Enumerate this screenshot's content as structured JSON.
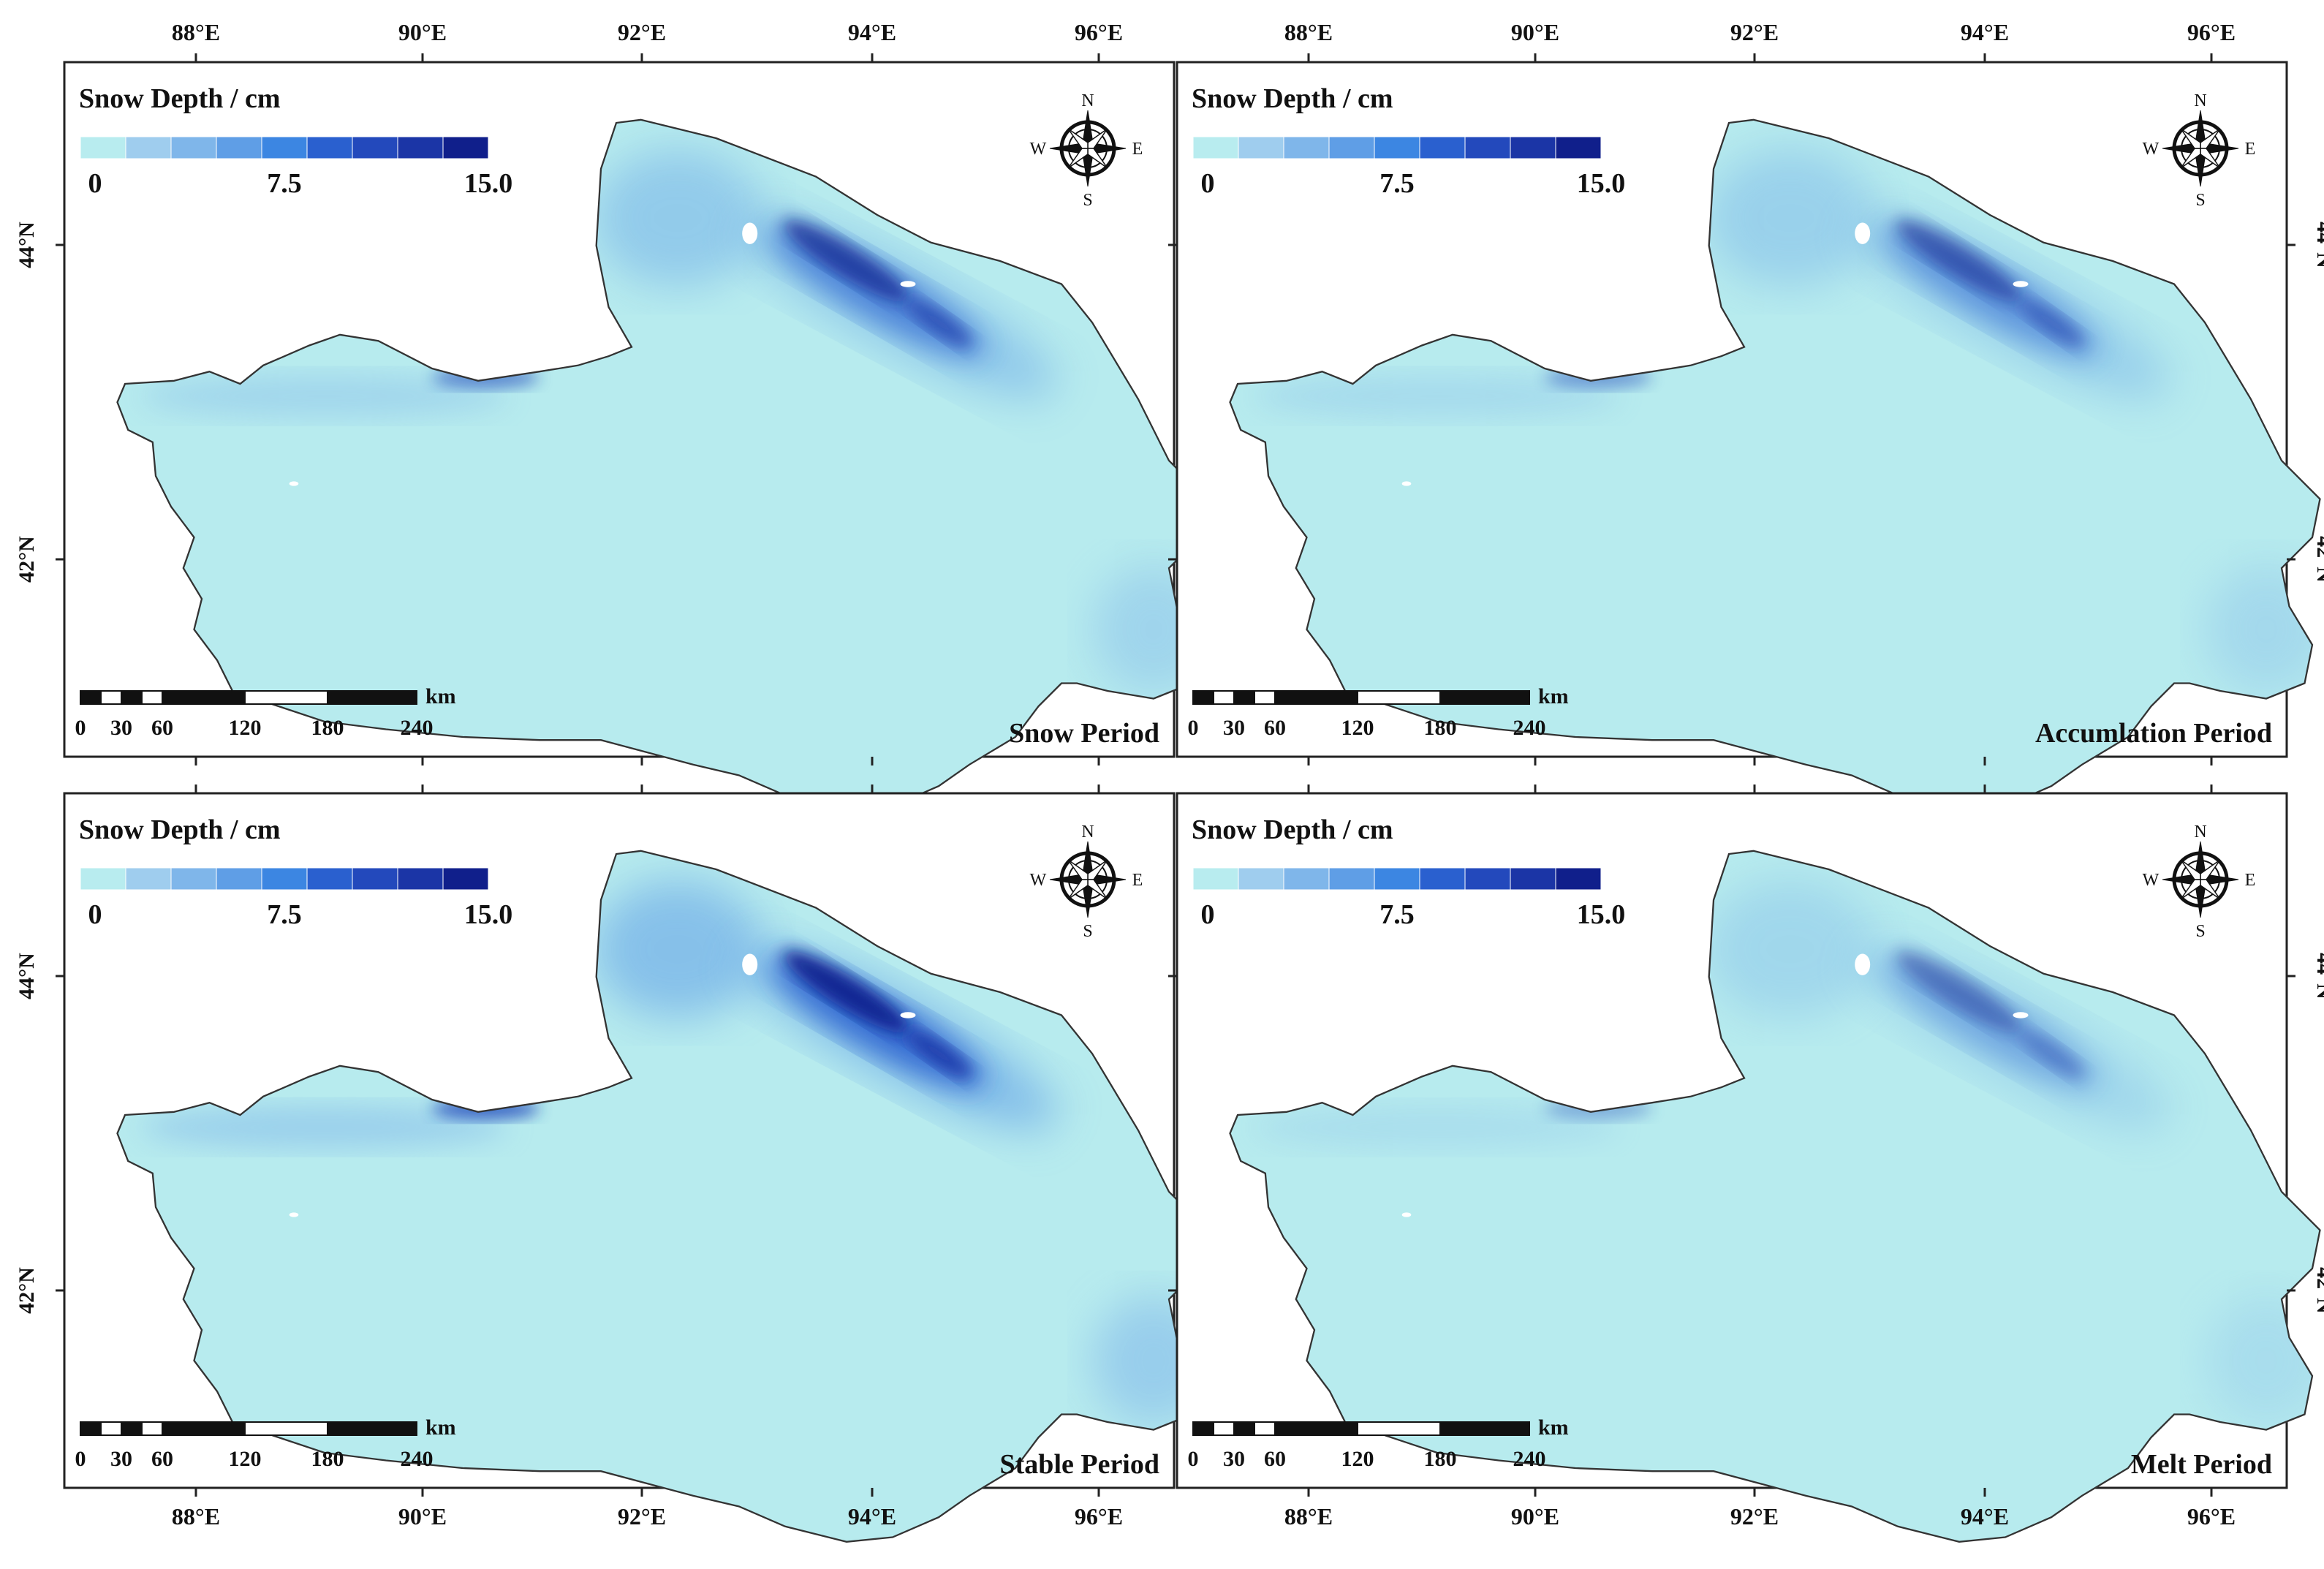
{
  "figure": {
    "legend_title": "Snow Depth / cm",
    "legend_ticks": [
      "0",
      "7.5",
      "15.0"
    ],
    "colorbar_colors": [
      "#b8ecef",
      "#9fcdee",
      "#7fb6ea",
      "#5f9ee6",
      "#3c86e2",
      "#2a60cf",
      "#2349bc",
      "#1b35a6",
      "#101f8b"
    ],
    "land_color": "#b7ebee",
    "scalebar_unit": "km",
    "scalebar_ticks": [
      "0",
      "30",
      "60",
      "120",
      "180",
      "240"
    ],
    "compass": {
      "n": "N",
      "s": "S",
      "e": "E",
      "w": "W"
    },
    "lon_labels": [
      "88°E",
      "90°E",
      "92°E",
      "94°E",
      "96°E"
    ],
    "lat_labels": [
      "44°N",
      "42°N"
    ],
    "panels": [
      {
        "id": "snow",
        "title": "Snow Period",
        "snow_intensity": 0.75
      },
      {
        "id": "accumulation",
        "title": "Accumlation Period",
        "snow_intensity": 0.6
      },
      {
        "id": "stable",
        "title": "Stable Period",
        "snow_intensity": 1.0
      },
      {
        "id": "melt",
        "title": "Melt Period",
        "snow_intensity": 0.45
      }
    ]
  }
}
